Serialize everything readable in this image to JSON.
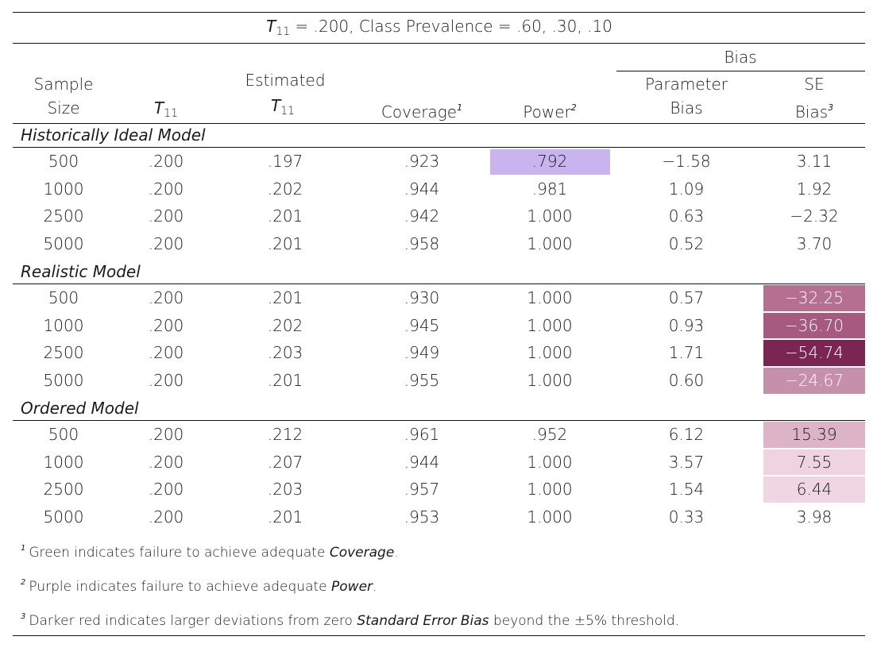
{
  "title": {
    "t_label": "T",
    "t_sub": "11",
    "rest": " = .200, Class Prevalence = .60, .30, .10"
  },
  "header": {
    "bias_group": "Bias",
    "sample_size_l1": "Sample",
    "sample_size_l2": "Size",
    "t11_label": "T",
    "t11_sub": "11",
    "est_l1": "Estimated",
    "est_t": "T",
    "est_sub": "11",
    "coverage": "Coverage",
    "coverage_sup": "1",
    "power": "Power",
    "power_sup": "2",
    "param_l1": "Parameter",
    "param_l2": "Bias",
    "se_l1": "SE",
    "se_l2": "Bias",
    "se_sup": "3"
  },
  "groups": [
    {
      "label": "Historically Ideal Model",
      "rows": [
        {
          "n": "500",
          "t11": ".200",
          "est": ".197",
          "cov": ".923",
          "pow": ".792",
          "pb": "−1.58",
          "se": "3.11",
          "pow_bg": "#c9b4ef",
          "se_bg": "",
          "se_fg": "#1a1a1a"
        },
        {
          "n": "1000",
          "t11": ".200",
          "est": ".202",
          "cov": ".944",
          "pow": ".981",
          "pb": "1.09",
          "se": "1.92",
          "pow_bg": "",
          "se_bg": "",
          "se_fg": "#1a1a1a"
        },
        {
          "n": "2500",
          "t11": ".200",
          "est": ".201",
          "cov": ".942",
          "pow": "1.000",
          "pb": "0.63",
          "se": "−2.32",
          "pow_bg": "",
          "se_bg": "",
          "se_fg": "#1a1a1a"
        },
        {
          "n": "5000",
          "t11": ".200",
          "est": ".201",
          "cov": ".958",
          "pow": "1.000",
          "pb": "0.52",
          "se": "3.70",
          "pow_bg": "",
          "se_bg": "",
          "se_fg": "#1a1a1a"
        }
      ]
    },
    {
      "label": "Realistic Model",
      "rows": [
        {
          "n": "500",
          "t11": ".200",
          "est": ".201",
          "cov": ".930",
          "pow": "1.000",
          "pb": "0.57",
          "se": "−32.25",
          "pow_bg": "",
          "se_bg": "#b5708f",
          "se_fg": "#ffffff"
        },
        {
          "n": "1000",
          "t11": ".200",
          "est": ".202",
          "cov": ".945",
          "pow": "1.000",
          "pb": "0.93",
          "se": "−36.70",
          "pow_bg": "",
          "se_bg": "#a55a7e",
          "se_fg": "#ffffff"
        },
        {
          "n": "2500",
          "t11": ".200",
          "est": ".203",
          "cov": ".949",
          "pow": "1.000",
          "pb": "1.71",
          "se": "−54.74",
          "pow_bg": "",
          "se_bg": "#7b2652",
          "se_fg": "#ffffff"
        },
        {
          "n": "5000",
          "t11": ".200",
          "est": ".201",
          "cov": ".955",
          "pow": "1.000",
          "pb": "0.60",
          "se": "−24.67",
          "pow_bg": "",
          "se_bg": "#c690aa",
          "se_fg": "#ffffff"
        }
      ]
    },
    {
      "label": "Ordered Model",
      "rows": [
        {
          "n": "500",
          "t11": ".200",
          "est": ".212",
          "cov": ".961",
          "pow": ".952",
          "pb": "6.12",
          "se": "15.39",
          "pow_bg": "",
          "se_bg": "#ddb3c8",
          "se_fg": "#1a1a1a"
        },
        {
          "n": "1000",
          "t11": ".200",
          "est": ".207",
          "cov": ".944",
          "pow": "1.000",
          "pb": "3.57",
          "se": "7.55",
          "pow_bg": "",
          "se_bg": "#efd3e1",
          "se_fg": "#1a1a1a"
        },
        {
          "n": "2500",
          "t11": ".200",
          "est": ".203",
          "cov": ".957",
          "pow": "1.000",
          "pb": "1.54",
          "se": "6.44",
          "pow_bg": "",
          "se_bg": "#f0d6e3",
          "se_fg": "#1a1a1a"
        },
        {
          "n": "5000",
          "t11": ".200",
          "est": ".201",
          "cov": ".953",
          "pow": "1.000",
          "pb": "0.33",
          "se": "3.98",
          "pow_bg": "",
          "se_bg": "",
          "se_fg": "#1a1a1a"
        }
      ]
    }
  ],
  "notes": [
    {
      "sup": "1",
      "before": "Green indicates failure to achieve adequate ",
      "em": "Coverage",
      "after": "."
    },
    {
      "sup": "2",
      "before": "Purple indicates failure to achieve adequate ",
      "em": "Power",
      "after": "."
    },
    {
      "sup": "3",
      "before": "Darker red indicates larger deviations from zero ",
      "em": "Standard Error Bias",
      "after": " beyond the ±5% threshold."
    }
  ]
}
